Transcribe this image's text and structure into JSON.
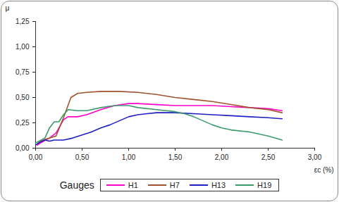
{
  "chart_data": {
    "type": "line",
    "y_label": "μ",
    "x_label": "εc (%)",
    "legend_title": "Gauges",
    "legend": "bottom",
    "grid": false,
    "xlim": [
      0,
      3
    ],
    "xticks": [
      {
        "value": 0,
        "label": "0,00"
      },
      {
        "value": 0.5,
        "label": "0,50"
      },
      {
        "value": 1,
        "label": "1,00"
      },
      {
        "value": 1.5,
        "label": "1,50"
      },
      {
        "value": 2,
        "label": "2,00"
      },
      {
        "value": 2.5,
        "label": "2,50"
      },
      {
        "value": 3,
        "label": "3,00"
      }
    ],
    "ylim": [
      0,
      1.25
    ],
    "yticks": [
      {
        "value": 0,
        "label": "0,00"
      },
      {
        "value": 0.25,
        "label": "0,25"
      },
      {
        "value": 0.5,
        "label": "0,50"
      },
      {
        "value": 0.75,
        "label": "0,75"
      },
      {
        "value": 1,
        "label": "1,00"
      },
      {
        "value": 1.25,
        "label": "1,25"
      }
    ],
    "series": [
      {
        "name": "H1",
        "color": "#ff00cc",
        "x": [
          0.02,
          0.05,
          0.15,
          0.22,
          0.3,
          0.35,
          0.45,
          0.55,
          0.7,
          0.85,
          1.0,
          1.1,
          1.3,
          1.5,
          1.7,
          1.9,
          2.1,
          2.3,
          2.5,
          2.65
        ],
        "values": [
          0.03,
          0.05,
          0.1,
          0.15,
          0.28,
          0.31,
          0.31,
          0.33,
          0.38,
          0.42,
          0.44,
          0.44,
          0.43,
          0.42,
          0.42,
          0.42,
          0.41,
          0.4,
          0.39,
          0.37
        ]
      },
      {
        "name": "H7",
        "color": "#a0522d",
        "x": [
          0.02,
          0.05,
          0.15,
          0.22,
          0.3,
          0.38,
          0.45,
          0.55,
          0.7,
          0.9,
          1.1,
          1.3,
          1.5,
          1.7,
          1.9,
          2.1,
          2.3,
          2.5,
          2.65
        ],
        "values": [
          0.04,
          0.07,
          0.1,
          0.12,
          0.3,
          0.5,
          0.54,
          0.55,
          0.56,
          0.56,
          0.55,
          0.53,
          0.5,
          0.48,
          0.46,
          0.43,
          0.4,
          0.38,
          0.35
        ]
      },
      {
        "name": "H13",
        "color": "#1f1fc8",
        "x": [
          0.0,
          0.05,
          0.1,
          0.15,
          0.2,
          0.3,
          0.4,
          0.5,
          0.6,
          0.7,
          0.8,
          0.9,
          1.0,
          1.1,
          1.2,
          1.3,
          1.5,
          1.7,
          1.9,
          2.1,
          2.3,
          2.5,
          2.65
        ],
        "values": [
          0.03,
          0.06,
          0.08,
          0.07,
          0.08,
          0.08,
          0.1,
          0.13,
          0.16,
          0.2,
          0.23,
          0.27,
          0.31,
          0.33,
          0.34,
          0.35,
          0.35,
          0.34,
          0.33,
          0.32,
          0.31,
          0.3,
          0.29
        ]
      },
      {
        "name": "H19",
        "color": "#3a9a6a",
        "x": [
          0.0,
          0.1,
          0.15,
          0.2,
          0.25,
          0.3,
          0.35,
          0.45,
          0.55,
          0.7,
          0.85,
          1.0,
          1.1,
          1.3,
          1.5,
          1.6,
          1.7,
          1.8,
          1.9,
          2.0,
          2.1,
          2.3,
          2.5,
          2.65
        ],
        "values": [
          0.05,
          0.1,
          0.2,
          0.26,
          0.26,
          0.33,
          0.38,
          0.37,
          0.37,
          0.4,
          0.42,
          0.42,
          0.4,
          0.38,
          0.36,
          0.34,
          0.31,
          0.27,
          0.23,
          0.2,
          0.18,
          0.16,
          0.12,
          0.08
        ]
      }
    ]
  }
}
